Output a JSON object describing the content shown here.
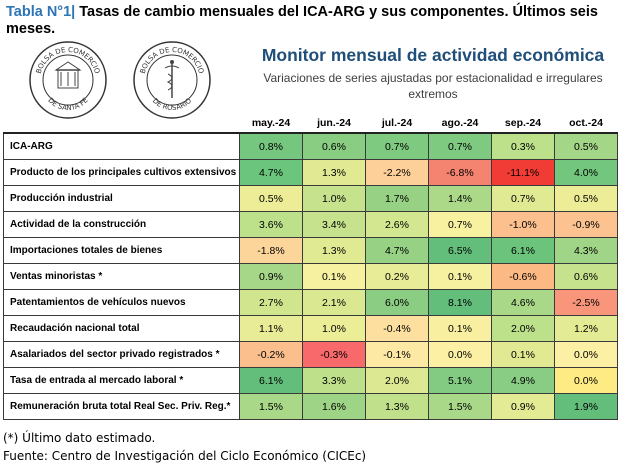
{
  "header": {
    "table_number": "Tabla N°1",
    "separator": "|",
    "title": "Tasas de cambio mensuales del ICA-ARG y sus componentes. Últimos seis meses."
  },
  "logos": {
    "seal_left_text": "BOLSA DE COMERCIO DE SANTA FE",
    "seal_right_text": "BOLSA DE COMERCIO DE ROSARIO"
  },
  "report": {
    "name": "Monitor mensual de actividad económica",
    "description": "Variaciones de series ajustadas por estacionalidad e irregulares extremos"
  },
  "table": {
    "columns": [
      "may.-24",
      "jun.-24",
      "jul.-24",
      "ago.-24",
      "sep.-24",
      "oct.-24"
    ],
    "rows": [
      {
        "label": "ICA-ARG",
        "values": [
          "0.8%",
          "0.6%",
          "0.7%",
          "0.7%",
          "0.3%",
          "0.5%"
        ],
        "colors": [
          "#75c67f",
          "#89cd82",
          "#7fca81",
          "#7fca81",
          "#bde08b",
          "#a3d687"
        ]
      },
      {
        "label": "Producto de los principales cultivos extensivos",
        "values": [
          "4.7%",
          "1.3%",
          "-2.2%",
          "-6.8%",
          "-11.1%",
          "4.0%"
        ],
        "colors": [
          "#6cc57d",
          "#e1ea93",
          "#fcd098",
          "#f4836f",
          "#f03c35",
          "#73c67e"
        ]
      },
      {
        "label": "Producción industrial",
        "values": [
          "0.5%",
          "1.0%",
          "1.7%",
          "1.4%",
          "0.7%",
          "0.5%"
        ],
        "colors": [
          "#eced96",
          "#c6e28c",
          "#96d184",
          "#acd988",
          "#dfea93",
          "#eced96"
        ]
      },
      {
        "label": "Actividad de la construcción",
        "values": [
          "3.6%",
          "3.4%",
          "2.6%",
          "0.7%",
          "-1.0%",
          "-0.9%"
        ],
        "colors": [
          "#bde08b",
          "#c6e28c",
          "#d3e690",
          "#f7f1a0",
          "#fcbf8e",
          "#fcc28f"
        ]
      },
      {
        "label": "Importaciones totales de bienes",
        "values": [
          "-1.8%",
          "1.3%",
          "4.7%",
          "6.5%",
          "6.1%",
          "4.3%"
        ],
        "colors": [
          "#fcd59b",
          "#e0ea93",
          "#96d184",
          "#63be7b",
          "#6bc37c",
          "#a0d587"
        ]
      },
      {
        "label": "Ventas minoristas *",
        "values": [
          "0.9%",
          "0.1%",
          "0.2%",
          "0.1%",
          "-0.6%",
          "0.6%"
        ],
        "colors": [
          "#a6d788",
          "#f5f1a0",
          "#e9ec96",
          "#f5f1a0",
          "#fdb983",
          "#c7e28c"
        ]
      },
      {
        "label": "Patentamientos de vehículos nuevos",
        "values": [
          "2.7%",
          "2.1%",
          "6.0%",
          "8.1%",
          "4.6%",
          "-2.5%"
        ],
        "colors": [
          "#d1e58f",
          "#dbe892",
          "#8bcd83",
          "#63be7b",
          "#a8d888",
          "#f9957a"
        ]
      },
      {
        "label": "Recaudación nacional total",
        "values": [
          "1.1%",
          "1.0%",
          "-0.4%",
          "0.1%",
          "2.0%",
          "1.2%"
        ],
        "colors": [
          "#e8ec96",
          "#ebed97",
          "#fde0a0",
          "#f8f0a0",
          "#bde08b",
          "#e3eb94"
        ]
      },
      {
        "label": "Asalariados del sector privado registrados *",
        "values": [
          "-0.2%",
          "-0.3%",
          "-0.1%",
          "0.0%",
          "0.1%",
          "0.0%"
        ],
        "colors": [
          "#fbbf8e",
          "#f8696b",
          "#fde8a4",
          "#fbf0a3",
          "#e1ea93",
          "#fbf0a3"
        ]
      },
      {
        "label": "Tasa de entrada al mercado laboral *",
        "values": [
          "6.1%",
          "3.3%",
          "2.0%",
          "5.1%",
          "4.9%",
          "0.0%"
        ],
        "colors": [
          "#63be7b",
          "#bfe08b",
          "#dde992",
          "#83cb82",
          "#88cd83",
          "#ffeb84"
        ]
      },
      {
        "label": "Remuneración bruta total Real Sec. Priv. Reg.*",
        "values": [
          "1.5%",
          "1.6%",
          "1.3%",
          "1.5%",
          "0.9%",
          "1.9%"
        ],
        "colors": [
          "#a9d888",
          "#9ed486",
          "#c0e08b",
          "#a9d888",
          "#e3eb94",
          "#63be7b"
        ]
      }
    ]
  },
  "footnotes": {
    "note": "(*) Último dato estimado.",
    "source": "Fuente: Centro de Investigación del Ciclo Económico (CICEc)"
  }
}
